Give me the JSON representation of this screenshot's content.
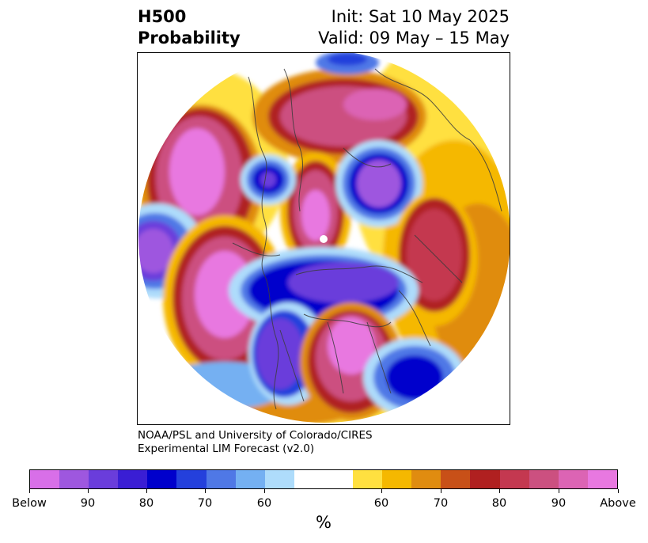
{
  "title": {
    "left_line1": "H500",
    "left_line2": "Probability",
    "right_line1": "Init: Sat 10 May 2025",
    "right_line2": "Valid: 09 May – 15 May"
  },
  "credit": {
    "line1": "NOAA/PSL and University of Colorado/CIRES",
    "line2": "Experimental LIM Forecast (v2.0)"
  },
  "colorbar": {
    "colors": [
      "#d86fe8",
      "#9e57df",
      "#6a3ddb",
      "#3a1ed4",
      "#0000cc",
      "#2440dc",
      "#4f78e6",
      "#74b0f2",
      "#aedcfb",
      "#ffffff",
      "#ffe040",
      "#f5b800",
      "#e08c10",
      "#c85018",
      "#b02020",
      "#c43850",
      "#cc5080",
      "#dc64b4",
      "#e878e0"
    ],
    "labels": [
      "Below",
      "90",
      "80",
      "70",
      "60",
      "60",
      "70",
      "80",
      "90",
      "Above"
    ],
    "unit": "%"
  },
  "map": {
    "anomaly_colors": {
      "above_strong": "#e878e0",
      "above_high": "#cc5080",
      "above_mid": "#b02020",
      "above_low": "#e08c10",
      "above_weak": "#ffe040",
      "below_weak": "#aedcfb",
      "below_low": "#4f78e6",
      "below_mid": "#0000cc",
      "below_high": "#6a3ddb",
      "below_strong": "#9e57df"
    }
  }
}
